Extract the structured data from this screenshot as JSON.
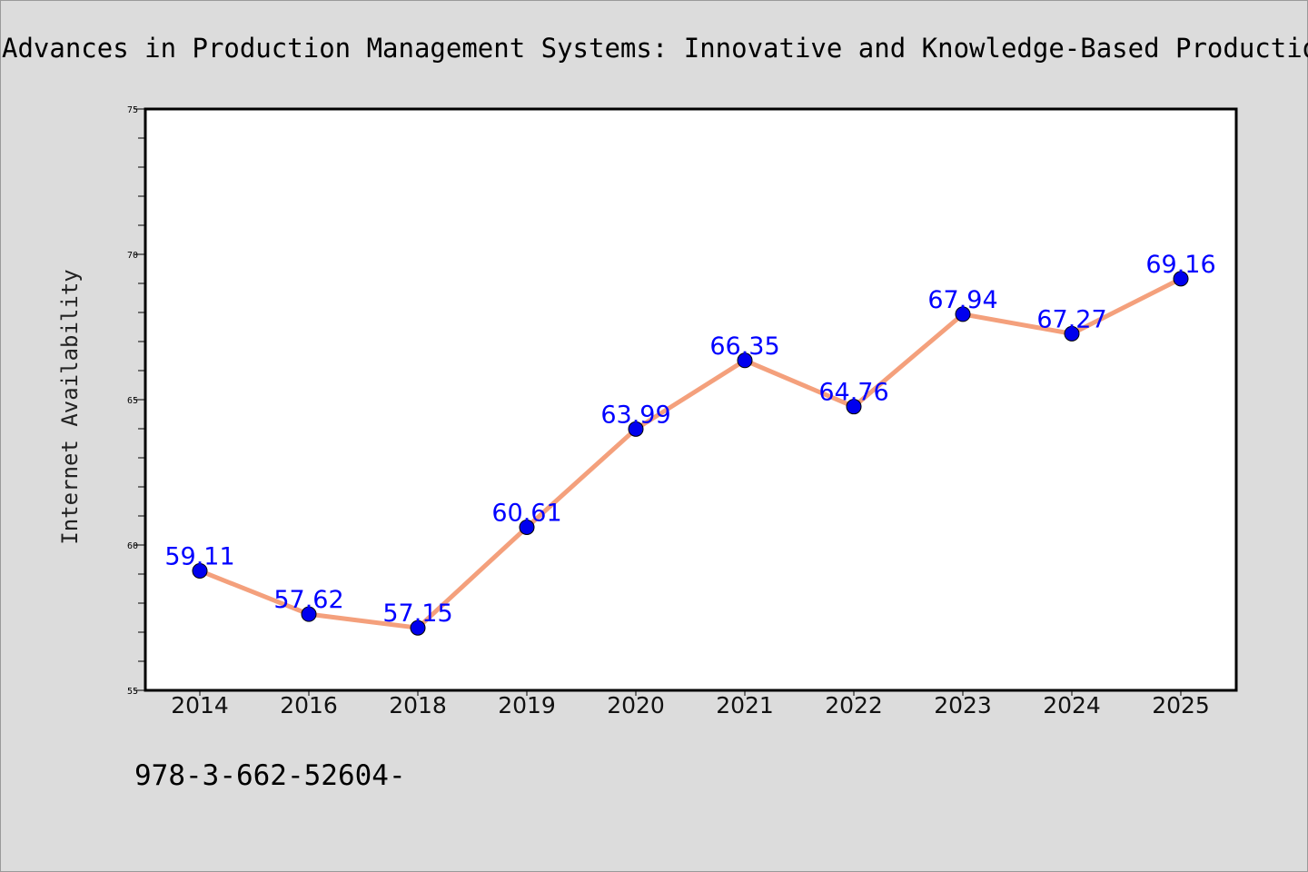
{
  "page": {
    "title": "Advances in Production Management Systems: Innovative and Knowledge-Based Production",
    "footer_text": "978-3-662-52604-"
  },
  "chart_data": {
    "type": "line",
    "title": "Advances in Production Management Systems: Innovative and Knowledge-Based Production",
    "xlabel": "",
    "ylabel": "Internet Availability",
    "categories": [
      "2014",
      "2016",
      "2018",
      "2019",
      "2020",
      "2021",
      "2022",
      "2023",
      "2024",
      "2025"
    ],
    "series": [
      {
        "values": [
          59.11,
          57.62,
          57.15,
          60.61,
          63.99,
          66.35,
          64.76,
          67.94,
          67.27,
          69.16
        ]
      }
    ],
    "data_labels": [
      "59.11",
      "57.62",
      "57.15",
      "60.61",
      "63.99",
      "66.35",
      "64.76",
      "67.94",
      "67.27",
      "69.16"
    ],
    "ylim": [
      55,
      75
    ],
    "yticks": [
      55,
      60,
      65,
      70,
      75
    ],
    "grid": false,
    "legend": "none",
    "colors": {
      "line": "#f4a07c",
      "marker": "#0000ee",
      "data_label": "#0000ff",
      "background": "#dcdcdc",
      "plot_background": "#ffffff"
    }
  }
}
